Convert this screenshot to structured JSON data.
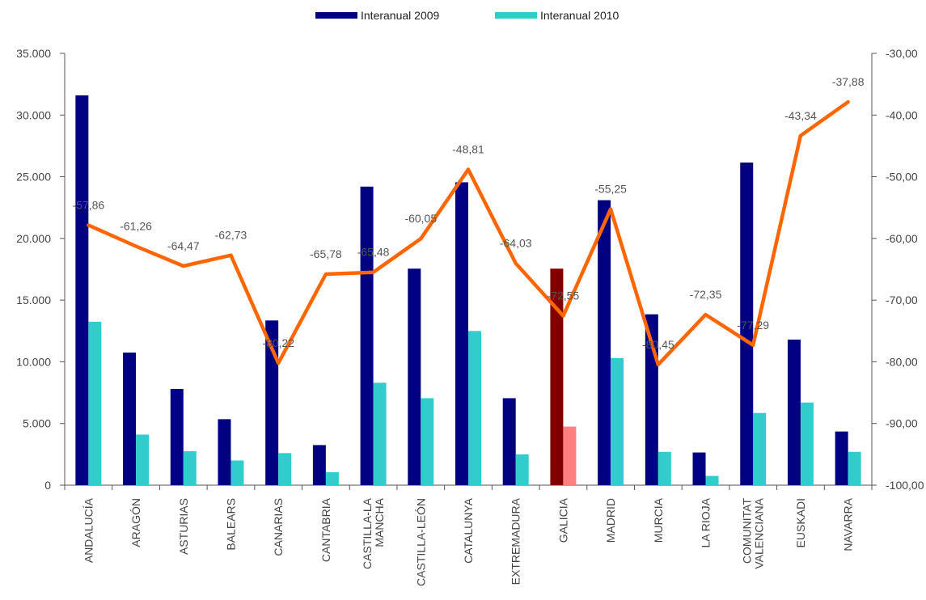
{
  "chart_data": {
    "type": "bar",
    "categories": [
      [
        "ANDALUCÍA"
      ],
      [
        "ARAGÓN"
      ],
      [
        "ASTURIAS"
      ],
      [
        "BALEARS"
      ],
      [
        "CANARIAS"
      ],
      [
        "CANTABRIA"
      ],
      [
        "CASTILLA-LA",
        "MANCHA"
      ],
      [
        "CASTILLA-LEÓN"
      ],
      [
        "CATALUNYA"
      ],
      [
        "EXTREMADURA"
      ],
      [
        "GALICIA"
      ],
      [
        "MADRID"
      ],
      [
        "MURCIA"
      ],
      [
        "LA RIOJA"
      ],
      [
        "COMUNITAT",
        "VALENCIANA"
      ],
      [
        "EUSKADI"
      ],
      [
        "NAVARRA"
      ]
    ],
    "series": [
      {
        "name": "Interanual 2009",
        "type": "bar",
        "axis": "left",
        "color": "#000080",
        "values": [
          31600,
          10750,
          7800,
          5350,
          13350,
          3250,
          24200,
          17550,
          24550,
          7050,
          17550,
          23100,
          13850,
          2650,
          26150,
          11800,
          4350
        ]
      },
      {
        "name": "Interanual 2010",
        "type": "bar",
        "axis": "left",
        "color": "#33CCCC",
        "values": [
          13250,
          4100,
          2750,
          2000,
          2600,
          1050,
          8300,
          7050,
          12500,
          2500,
          4750,
          10300,
          2700,
          750,
          5850,
          6700,
          2700
        ]
      },
      {
        "type": "line",
        "axis": "right",
        "color": "#FF6600",
        "values": [
          -57.86,
          -61.26,
          -64.47,
          -62.73,
          -80.22,
          -65.78,
          -65.48,
          -60.05,
          -48.81,
          -64.03,
          -72.55,
          -55.25,
          -80.45,
          -72.35,
          -77.29,
          -43.34,
          -37.88
        ],
        "labels": [
          "-57,86",
          "-61,26",
          "-64,47",
          "-62,73",
          "-80,22",
          "-65,78",
          "-65,48",
          "-60,05",
          "-48,81",
          "-64,03",
          "-72,55",
          "-55,25",
          "-80,45",
          "-72,35",
          "-77,29",
          "-43,34",
          "-37,88"
        ]
      }
    ],
    "highlight": {
      "category_index": 10,
      "colors": [
        "#800000",
        "#FF8080"
      ]
    },
    "left_axis": {
      "ylim": [
        0,
        35000
      ],
      "ticks": [
        0,
        5000,
        10000,
        15000,
        20000,
        25000,
        30000,
        35000
      ],
      "tick_labels": [
        "0",
        "5.000",
        "10.000",
        "15.000",
        "20.000",
        "25.000",
        "30.000",
        "35.000"
      ]
    },
    "right_axis": {
      "ylim": [
        -100,
        -30
      ],
      "ticks": [
        -100,
        -90,
        -80,
        -70,
        -60,
        -50,
        -40,
        -30
      ],
      "tick_labels": [
        "-100,00",
        "-90,00",
        "-80,00",
        "-70,00",
        "-60,00",
        "-50,00",
        "-40,00",
        "-30,00"
      ]
    },
    "legend_position": "top-center",
    "grid": false,
    "title": "",
    "xlabel": "",
    "ylabel": ""
  }
}
